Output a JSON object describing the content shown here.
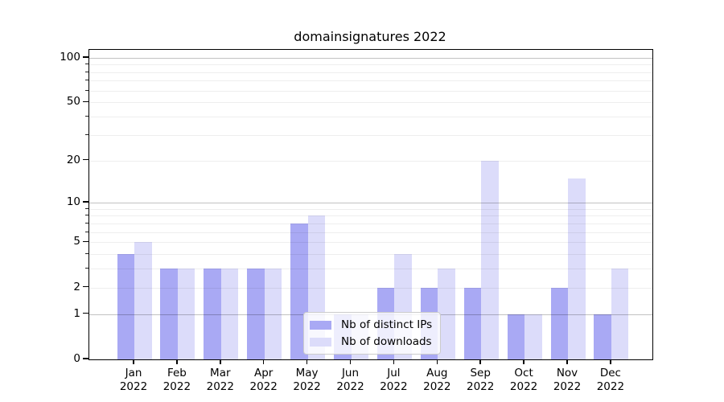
{
  "title": "domainsignatures 2022",
  "chart_data": {
    "type": "bar",
    "months": [
      "Jan",
      "Feb",
      "Mar",
      "Apr",
      "May",
      "Jun",
      "Jul",
      "Aug",
      "Sep",
      "Oct",
      "Nov",
      "Dec"
    ],
    "year": "2022",
    "series": [
      {
        "name": "Nb of distinct IPs",
        "color": "#a9a9f4",
        "values": [
          4,
          3,
          3,
          3,
          7,
          1,
          2,
          2,
          2,
          1,
          2,
          1
        ]
      },
      {
        "name": "Nb of downloads",
        "color": "#dcdcfa",
        "values": [
          5,
          3,
          3,
          3,
          8,
          1,
          4,
          3,
          20,
          1,
          15,
          3
        ]
      }
    ],
    "y_ticks": [
      0,
      1,
      2,
      5,
      10,
      20,
      50,
      100
    ],
    "y_tick_labels": [
      "0",
      "1",
      "2",
      "5",
      "10",
      "20",
      "50",
      "100"
    ],
    "y_major_gridlines": [
      1,
      10,
      100
    ],
    "y_minor_gridlines": [
      2,
      3,
      4,
      5,
      6,
      7,
      8,
      9,
      20,
      30,
      40,
      50,
      60,
      70,
      80,
      90
    ],
    "scale": "log1p",
    "ylim": [
      0,
      113
    ],
    "grid": true,
    "legend_position": "lower center",
    "xlabel": "",
    "ylabel": ""
  }
}
